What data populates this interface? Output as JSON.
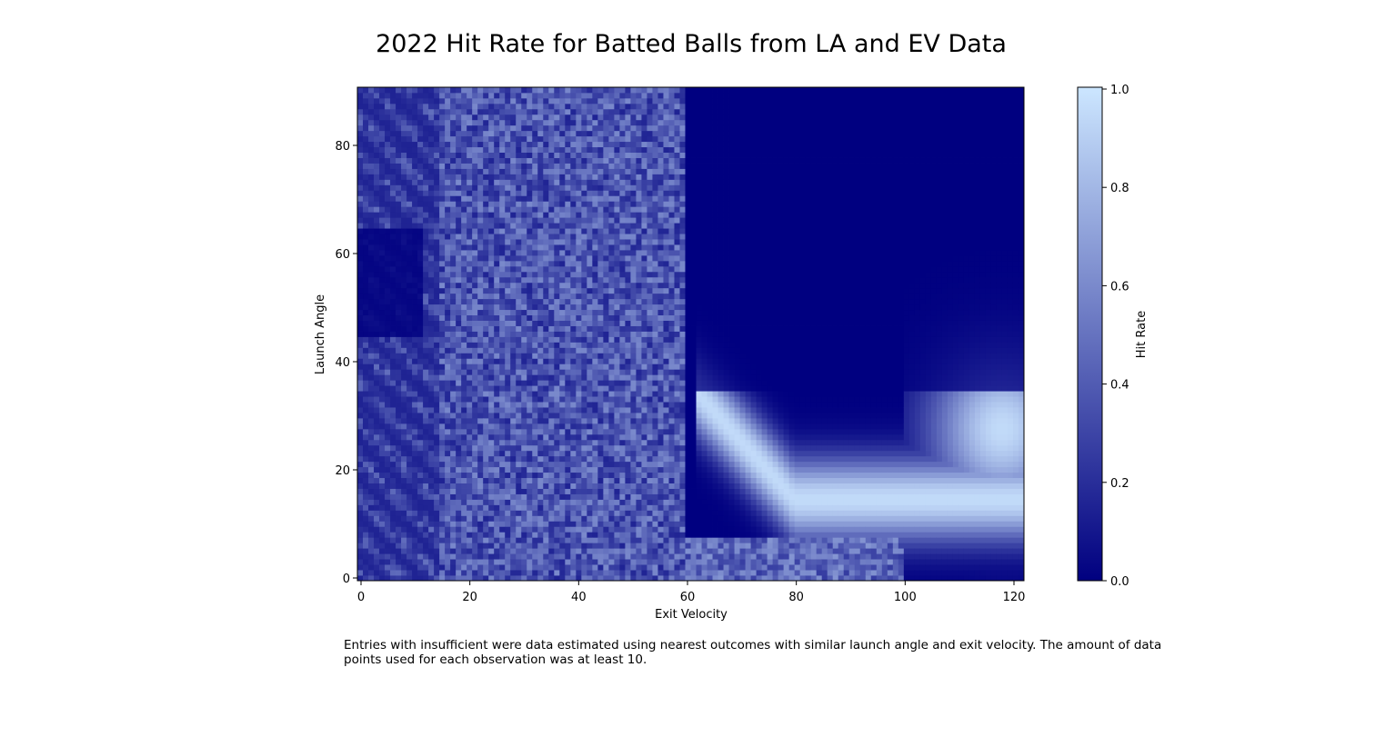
{
  "chart_data": {
    "type": "heatmap",
    "title": "2022 Hit Rate for Batted Balls from LA and EV Data",
    "xlabel": "Exit Velocity",
    "ylabel": "Launch Angle",
    "xlim": [
      0,
      122
    ],
    "ylim": [
      0,
      91
    ],
    "x_ticks": [
      0,
      20,
      40,
      60,
      80,
      100,
      120
    ],
    "y_ticks": [
      0,
      20,
      40,
      60,
      80
    ],
    "colorbar": {
      "label": "Hit Rate",
      "range": [
        0.0,
        1.0
      ],
      "ticks": [
        "0.0",
        "0.2",
        "0.4",
        "0.6",
        "0.8",
        "1.0"
      ],
      "colors": [
        "#000080",
        "#cce6ff"
      ]
    },
    "description_of_pattern": "",
    "bin_counts": {
      "x": 122,
      "y": 91
    }
  },
  "caption": "Entries with insufficient were data estimated using nearest outcomes with similar launch angle and exit velocity. The amount of data points used for each observation was at least 10."
}
